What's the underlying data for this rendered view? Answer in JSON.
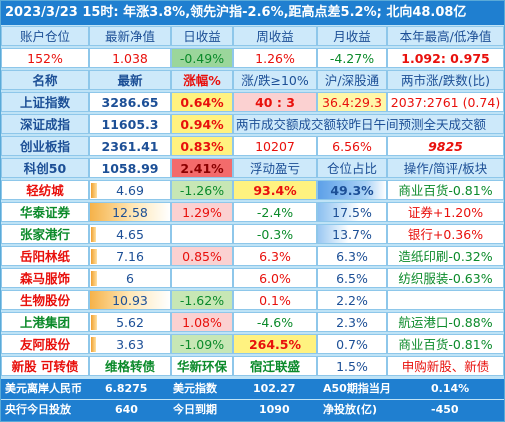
{
  "title": "2023/3/23  15时: 年涨3.8%,领先沪指-2.6%,距高点差5.2%; 北向48.08亿",
  "summary_headers": [
    "账户仓位",
    "最新净值",
    "日收益",
    "周收益",
    "月收益",
    "本年最高/低净值"
  ],
  "summary_values": [
    "152%",
    "1.038",
    "-0.49%",
    "1.26%",
    "-4.27%",
    "1.092: 0.975"
  ],
  "index_headers": [
    "名称",
    "最新",
    "涨幅%",
    "涨/跌≥10%",
    "沪/深股通",
    "两市涨/跌数(比)"
  ],
  "indices": [
    {
      "name": "上证指数",
      "value": "3286.65",
      "change": "0.64%",
      "c4": "40 : 3",
      "c5": "36.4:29.3",
      "c6": "2037:2761 (0.74)"
    },
    {
      "name": "深证成指",
      "value": "11605.3",
      "change": "0.94%",
      "note": "两市成交额成交额较昨日午间预测全天成交额"
    },
    {
      "name": "创业板指",
      "value": "2361.41",
      "change": "0.83%",
      "c4": "10207",
      "c5": "6.56%",
      "c6": "9825"
    },
    {
      "name": "科创50",
      "value": "1058.99",
      "change": "2.41%",
      "c4": "浮动盈亏",
      "c5": "仓位占比",
      "c6": "操作/简评/板块"
    }
  ],
  "stocks": [
    {
      "name": "轻纺城",
      "price": "4.69",
      "change": "-1.26%",
      "pnl": "93.4%",
      "pos": "49.3%",
      "note": "商业百货-0.81%"
    },
    {
      "name": "华泰证券",
      "price": "12.58",
      "change": "1.29%",
      "pnl": "-2.4%",
      "pos": "17.5%",
      "note": "证券+1.20%"
    },
    {
      "name": "张家港行",
      "price": "4.65",
      "change": "",
      "pnl": "-0.3%",
      "pos": "13.7%",
      "note": "银行+0.36%"
    },
    {
      "name": "岳阳林纸",
      "price": "7.16",
      "change": "0.85%",
      "pnl": "6.3%",
      "pos": "6.3%",
      "note": "造纸印刷-0.32%"
    },
    {
      "name": "森马服饰",
      "price": "6",
      "change": "",
      "pnl": "6.0%",
      "pos": "6.5%",
      "note": "纺织服装-0.63%"
    },
    {
      "name": "生物股份",
      "price": "10.93",
      "change": "-1.62%",
      "pnl": "0.1%",
      "pos": "2.2%",
      "note": ""
    },
    {
      "name": "上港集团",
      "price": "5.62",
      "change": "1.08%",
      "pnl": "-4.6%",
      "pos": "2.3%",
      "note": "航运港口-0.88%"
    },
    {
      "name": "友阿股份",
      "price": "3.63",
      "change": "-1.09%",
      "pnl": "264.5%",
      "pos": "0.7%",
      "note": "商业百货-0.81%"
    }
  ],
  "bottom_row": [
    "新股 可转债",
    "维格转债",
    "华新环保",
    "宿迁联盛",
    "1.5%",
    "申购新股、新债"
  ],
  "footer1": {
    "l1": "美元离岸人民币",
    "v1": "6.8275",
    "l2": "美元指数",
    "v2": "102.27",
    "l3": "A50期指当月",
    "v3": "0.14%"
  },
  "footer2": {
    "l1": "央行今日投放",
    "v1": "640",
    "l2": "今日到期",
    "v2": "1090",
    "l3": "净投放(亿)",
    "v3": "-450"
  },
  "colors": {
    "title_bg": "#1f7fd0",
    "up": "#e8100c",
    "down": "#0b8a2a",
    "label": "#1c4f96"
  }
}
